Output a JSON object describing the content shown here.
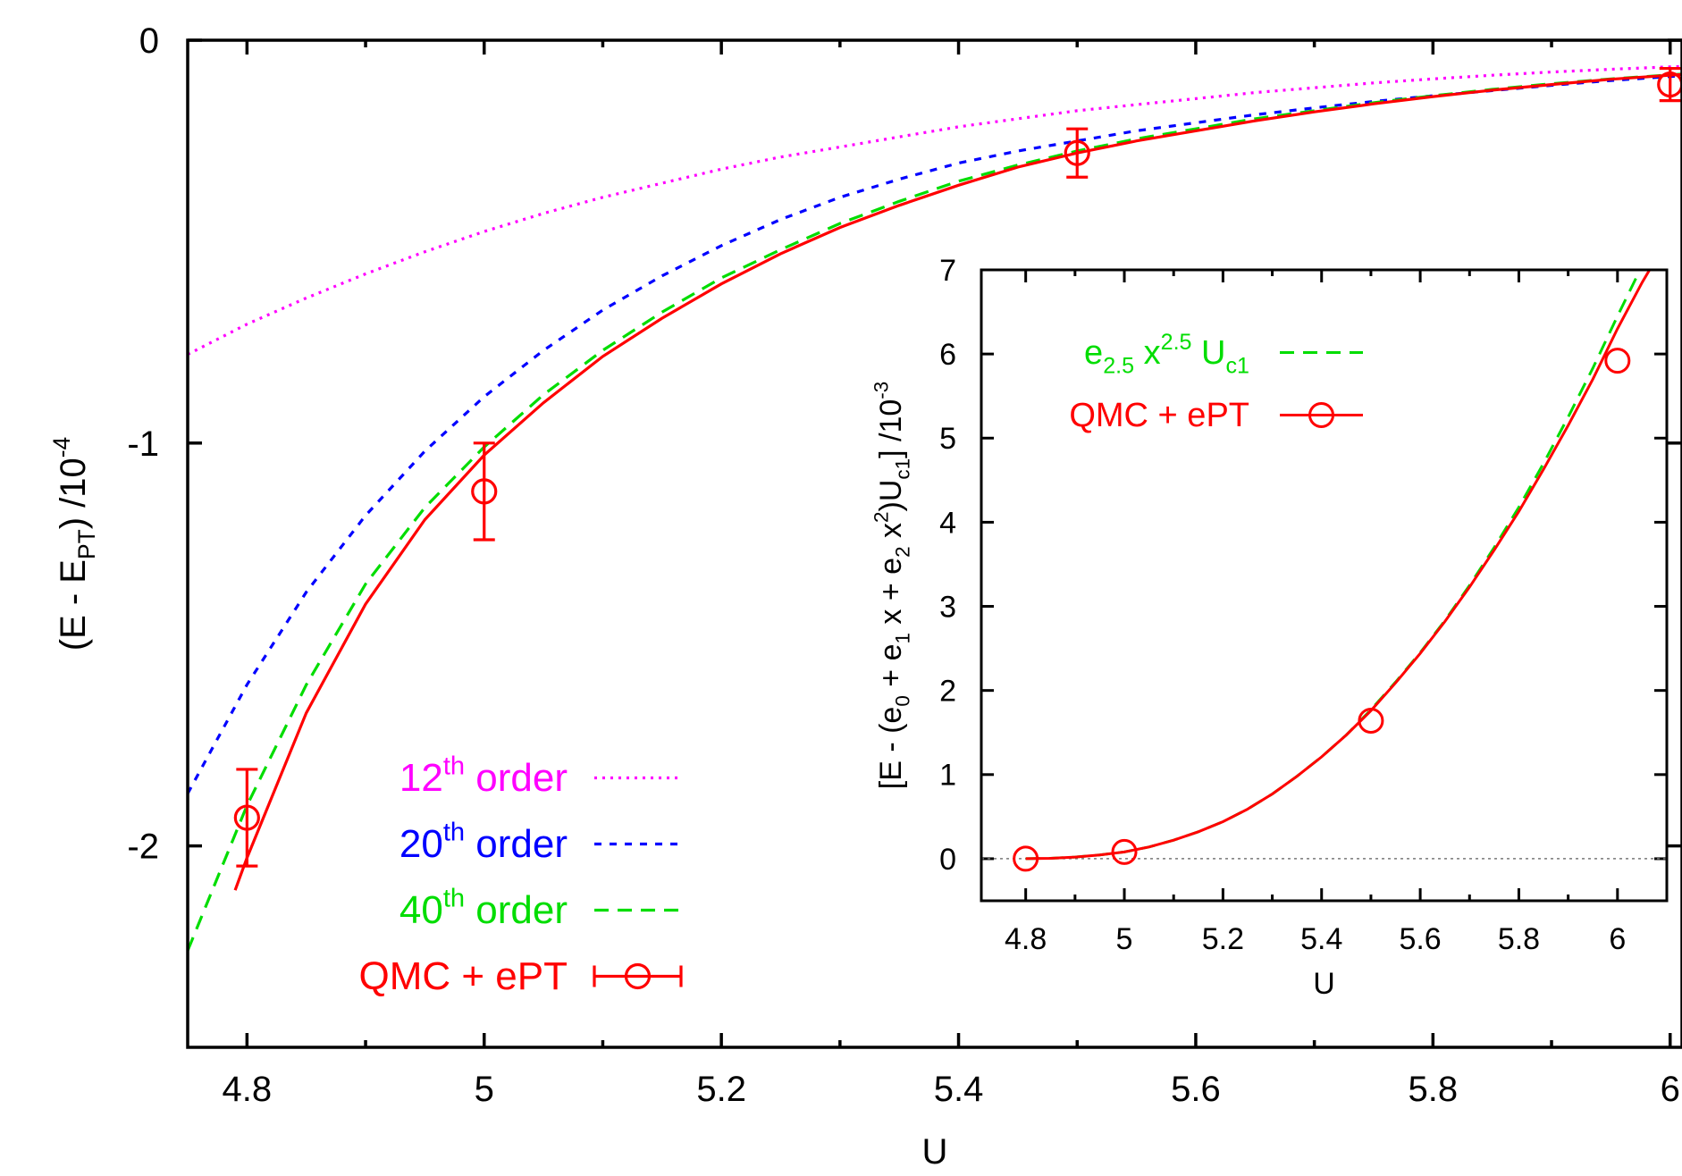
{
  "chart_data": [
    {
      "type": "line",
      "xlabel": "U",
      "ylabel_parts": [
        "(E - E",
        "PT",
        ") /10",
        "-4"
      ],
      "xlim": [
        4.75,
        6.01
      ],
      "ylim": [
        -2.5,
        0
      ],
      "x_tick_values": [
        4.8,
        5.0,
        5.2,
        5.4,
        5.6,
        5.8,
        6.0
      ],
      "x_tick_labels": [
        "4.8",
        "5",
        "5.2",
        "5.4",
        "5.6",
        "5.8",
        "6"
      ],
      "y_tick_values": [
        0,
        -1,
        -2
      ],
      "y_tick_labels": [
        "0",
        "-1",
        "-2"
      ],
      "legend_position": "bottom-left",
      "series": [
        {
          "name_parts": [
            "12",
            "th",
            " order"
          ],
          "color": "#ff00ff",
          "style": "dotted",
          "x": [
            4.75,
            4.8,
            4.85,
            4.9,
            4.95,
            5.0,
            5.05,
            5.1,
            5.15,
            5.2,
            5.25,
            5.3,
            5.35,
            5.4,
            5.45,
            5.5,
            5.55,
            5.6,
            5.65,
            5.7,
            5.75,
            5.8,
            5.85,
            5.9,
            5.95,
            6.0,
            6.01
          ],
          "y": [
            -0.78,
            -0.705,
            -0.64,
            -0.58,
            -0.525,
            -0.475,
            -0.43,
            -0.39,
            -0.355,
            -0.32,
            -0.29,
            -0.265,
            -0.24,
            -0.215,
            -0.195,
            -0.175,
            -0.16,
            -0.145,
            -0.13,
            -0.118,
            -0.106,
            -0.096,
            -0.087,
            -0.079,
            -0.072,
            -0.066,
            -0.065
          ]
        },
        {
          "name_parts": [
            "20",
            "th",
            " order"
          ],
          "color": "#0000ff",
          "style": "dashed-short",
          "x": [
            4.75,
            4.8,
            4.85,
            4.9,
            4.95,
            5.0,
            5.05,
            5.1,
            5.15,
            5.2,
            5.25,
            5.3,
            5.35,
            5.4,
            5.45,
            5.5,
            5.55,
            5.6,
            5.65,
            5.7,
            5.75,
            5.8,
            5.85,
            5.9,
            5.95,
            6.0,
            6.01
          ],
          "y": [
            -1.87,
            -1.6,
            -1.37,
            -1.18,
            -1.02,
            -0.885,
            -0.77,
            -0.67,
            -0.585,
            -0.51,
            -0.445,
            -0.39,
            -0.345,
            -0.305,
            -0.275,
            -0.25,
            -0.225,
            -0.205,
            -0.185,
            -0.168,
            -0.152,
            -0.138,
            -0.125,
            -0.112,
            -0.1,
            -0.09,
            -0.088
          ]
        },
        {
          "name_parts": [
            "40",
            "th",
            " order"
          ],
          "color": "#00dd00",
          "style": "dashed-long",
          "x": [
            4.75,
            4.8,
            4.85,
            4.9,
            4.95,
            5.0,
            5.05,
            5.1,
            5.15,
            5.2,
            5.25,
            5.3,
            5.35,
            5.4,
            5.45,
            5.5,
            5.55,
            5.6,
            5.65,
            5.7,
            5.75,
            5.8,
            5.85,
            5.9,
            5.95,
            6.0,
            6.01
          ],
          "y": [
            -2.26,
            -1.9,
            -1.6,
            -1.35,
            -1.16,
            -1.01,
            -0.88,
            -0.77,
            -0.675,
            -0.59,
            -0.52,
            -0.455,
            -0.4,
            -0.35,
            -0.31,
            -0.275,
            -0.245,
            -0.22,
            -0.195,
            -0.175,
            -0.155,
            -0.138,
            -0.122,
            -0.108,
            -0.096,
            -0.086,
            -0.084
          ]
        },
        {
          "name_parts": [
            "QMC + ePT"
          ],
          "color": "#ff0000",
          "style": "solid",
          "x": [
            4.79,
            4.8,
            4.85,
            4.9,
            4.95,
            5.0,
            5.05,
            5.1,
            5.15,
            5.2,
            5.25,
            5.3,
            5.35,
            5.4,
            5.45,
            5.5,
            5.55,
            5.6,
            5.65,
            5.7,
            5.75,
            5.8,
            5.85,
            5.9,
            5.95,
            6.0,
            6.01
          ],
          "y": [
            -2.11,
            -2.03,
            -1.67,
            -1.4,
            -1.19,
            -1.03,
            -0.9,
            -0.785,
            -0.69,
            -0.605,
            -0.53,
            -0.465,
            -0.41,
            -0.36,
            -0.315,
            -0.28,
            -0.25,
            -0.225,
            -0.2,
            -0.178,
            -0.158,
            -0.14,
            -0.124,
            -0.11,
            -0.097,
            -0.087,
            -0.085
          ]
        }
      ],
      "points": {
        "color": "#ff0000",
        "x": [
          4.8,
          5.0,
          5.5,
          6.0
        ],
        "y": [
          -1.93,
          -1.12,
          -0.28,
          -0.11
        ],
        "err": [
          0.12,
          0.12,
          0.06,
          0.04
        ]
      }
    },
    {
      "type": "line",
      "xlabel": "U",
      "ylabel_parts": [
        "[E - (e",
        "0",
        " + e",
        "1",
        " x + e",
        "2",
        " x",
        "2",
        ")U",
        "c1",
        "] /10",
        "-3"
      ],
      "xlim": [
        4.71,
        6.1
      ],
      "ylim": [
        -0.5,
        7
      ],
      "x_tick_values": [
        4.8,
        5.0,
        5.2,
        5.4,
        5.6,
        5.8,
        6.0
      ],
      "x_tick_labels": [
        "4.8",
        "5",
        "5.2",
        "5.4",
        "5.6",
        "5.8",
        "6"
      ],
      "y_tick_values": [
        0,
        1,
        2,
        3,
        4,
        5,
        6,
        7
      ],
      "y_tick_labels": [
        "0",
        "1",
        "2",
        "3",
        "4",
        "5",
        "6",
        "7"
      ],
      "zero_line": true,
      "legend_position": "top-left",
      "series": [
        {
          "name_parts": [
            "e",
            "2.5",
            " x",
            "2.5",
            " U",
            "c1"
          ],
          "color": "#00dd00",
          "style": "dashed-long",
          "x": [
            4.8,
            4.85,
            4.9,
            4.95,
            5.0,
            5.05,
            5.1,
            5.15,
            5.2,
            5.25,
            5.3,
            5.35,
            5.4,
            5.45,
            5.5,
            5.55,
            5.6,
            5.65,
            5.7,
            5.75,
            5.8,
            5.85,
            5.9,
            5.95,
            6.0,
            6.05,
            6.08
          ],
          "y": [
            0.0,
            0.005,
            0.02,
            0.045,
            0.08,
            0.14,
            0.22,
            0.32,
            0.44,
            0.59,
            0.77,
            0.98,
            1.21,
            1.47,
            1.77,
            2.1,
            2.45,
            2.83,
            3.25,
            3.7,
            4.18,
            4.7,
            5.25,
            5.83,
            6.45,
            7.05,
            7.35
          ]
        },
        {
          "name_parts": [
            "QMC + ePT"
          ],
          "color": "#ff0000",
          "style": "solid",
          "x": [
            4.8,
            4.85,
            4.9,
            4.95,
            5.0,
            5.05,
            5.1,
            5.15,
            5.2,
            5.25,
            5.3,
            5.35,
            5.4,
            5.45,
            5.5,
            5.55,
            5.6,
            5.65,
            5.7,
            5.75,
            5.8,
            5.85,
            5.9,
            5.95,
            6.0,
            6.05,
            6.08
          ],
          "y": [
            0.0,
            0.005,
            0.02,
            0.045,
            0.08,
            0.14,
            0.22,
            0.32,
            0.44,
            0.59,
            0.77,
            0.98,
            1.21,
            1.47,
            1.76,
            2.09,
            2.44,
            2.82,
            3.23,
            3.67,
            4.13,
            4.63,
            5.15,
            5.7,
            6.3,
            6.85,
            7.15
          ]
        }
      ],
      "points": {
        "color": "#ff0000",
        "x": [
          4.8,
          5.0,
          5.5,
          6.0
        ],
        "y": [
          0.0,
          0.08,
          1.64,
          5.92
        ]
      }
    }
  ]
}
